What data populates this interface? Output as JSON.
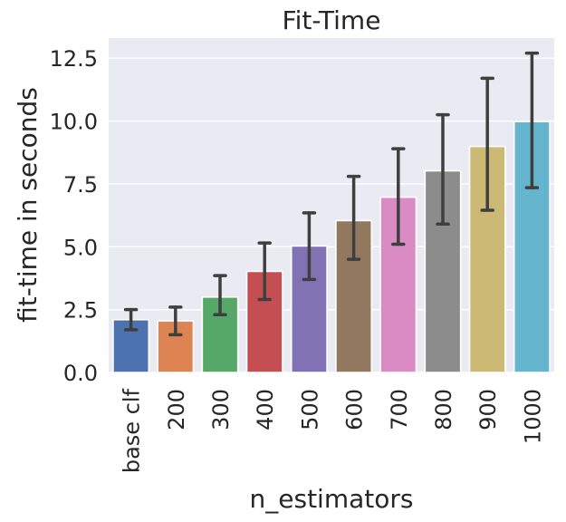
{
  "chart_data": {
    "type": "bar",
    "title": "Fit-Time",
    "xlabel": "n_estimators",
    "ylabel": "fit-time in seconds",
    "categories": [
      "base clf",
      "200",
      "300",
      "400",
      "500",
      "600",
      "700",
      "800",
      "900",
      "1000"
    ],
    "values": [
      2.1,
      2.05,
      3.0,
      4.02,
      5.03,
      6.04,
      6.97,
      8.02,
      8.99,
      9.98
    ],
    "error_low": [
      1.7,
      1.5,
      2.3,
      2.9,
      3.7,
      4.5,
      5.1,
      5.9,
      6.45,
      7.35
    ],
    "error_high": [
      2.5,
      2.6,
      3.85,
      5.15,
      6.35,
      7.8,
      8.9,
      10.25,
      11.7,
      12.7
    ],
    "colors": [
      "#4c72b0",
      "#dd8452",
      "#55a868",
      "#c44e52",
      "#8172b3",
      "#937860",
      "#da8bc3",
      "#8c8c8c",
      "#ccb974",
      "#64b5cd"
    ],
    "ylim": [
      0,
      13.3
    ],
    "yticks": [
      0.0,
      2.5,
      5.0,
      7.5,
      10.0,
      12.5
    ],
    "ytick_labels": [
      "0.0",
      "2.5",
      "5.0",
      "7.5",
      "10.0",
      "12.5"
    ],
    "background": "#eaeaf2",
    "grid": true
  }
}
